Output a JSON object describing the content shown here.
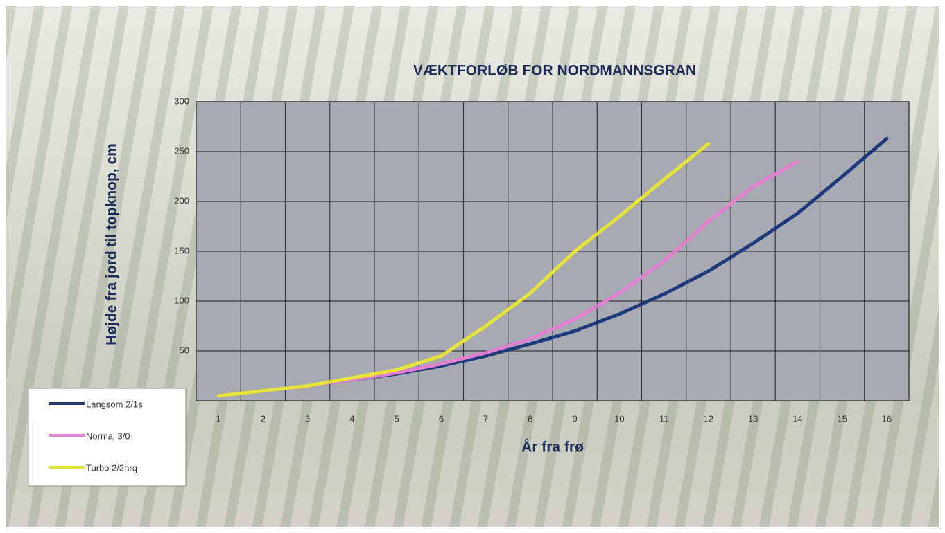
{
  "chart_data": {
    "type": "line",
    "title": "VÆKTFORLØB FOR NORDMANNSGRAN",
    "x_label": "År fra frø",
    "y_label": "Højde fra jord til topknop, cm",
    "categories": [
      "1",
      "2",
      "3",
      "4",
      "5",
      "6",
      "7",
      "8",
      "9",
      "10",
      "11",
      "12",
      "13",
      "14",
      "15",
      "16"
    ],
    "series": [
      {
        "name": "Langsom 2/1s",
        "color": "#1f3a7a",
        "values": [
          5,
          10,
          15,
          21,
          27,
          35,
          45,
          57,
          70,
          87,
          107,
          130,
          158,
          188,
          225,
          263
        ]
      },
      {
        "name": "Normal 3/0",
        "color": "#e27fd0",
        "values": [
          5,
          10,
          15,
          21,
          28,
          37,
          48,
          62,
          82,
          108,
          140,
          180,
          215,
          240,
          null,
          null
        ]
      },
      {
        "name": "Turbo 2/2hrq",
        "color": "#e6e43a",
        "values": [
          5,
          10,
          15,
          23,
          31,
          45,
          75,
          108,
          150,
          185,
          222,
          258,
          null,
          null,
          null,
          null
        ]
      }
    ],
    "ylim": [
      0,
      300
    ],
    "yticks": [
      50,
      100,
      150,
      200,
      250,
      300
    ],
    "grid": true
  }
}
